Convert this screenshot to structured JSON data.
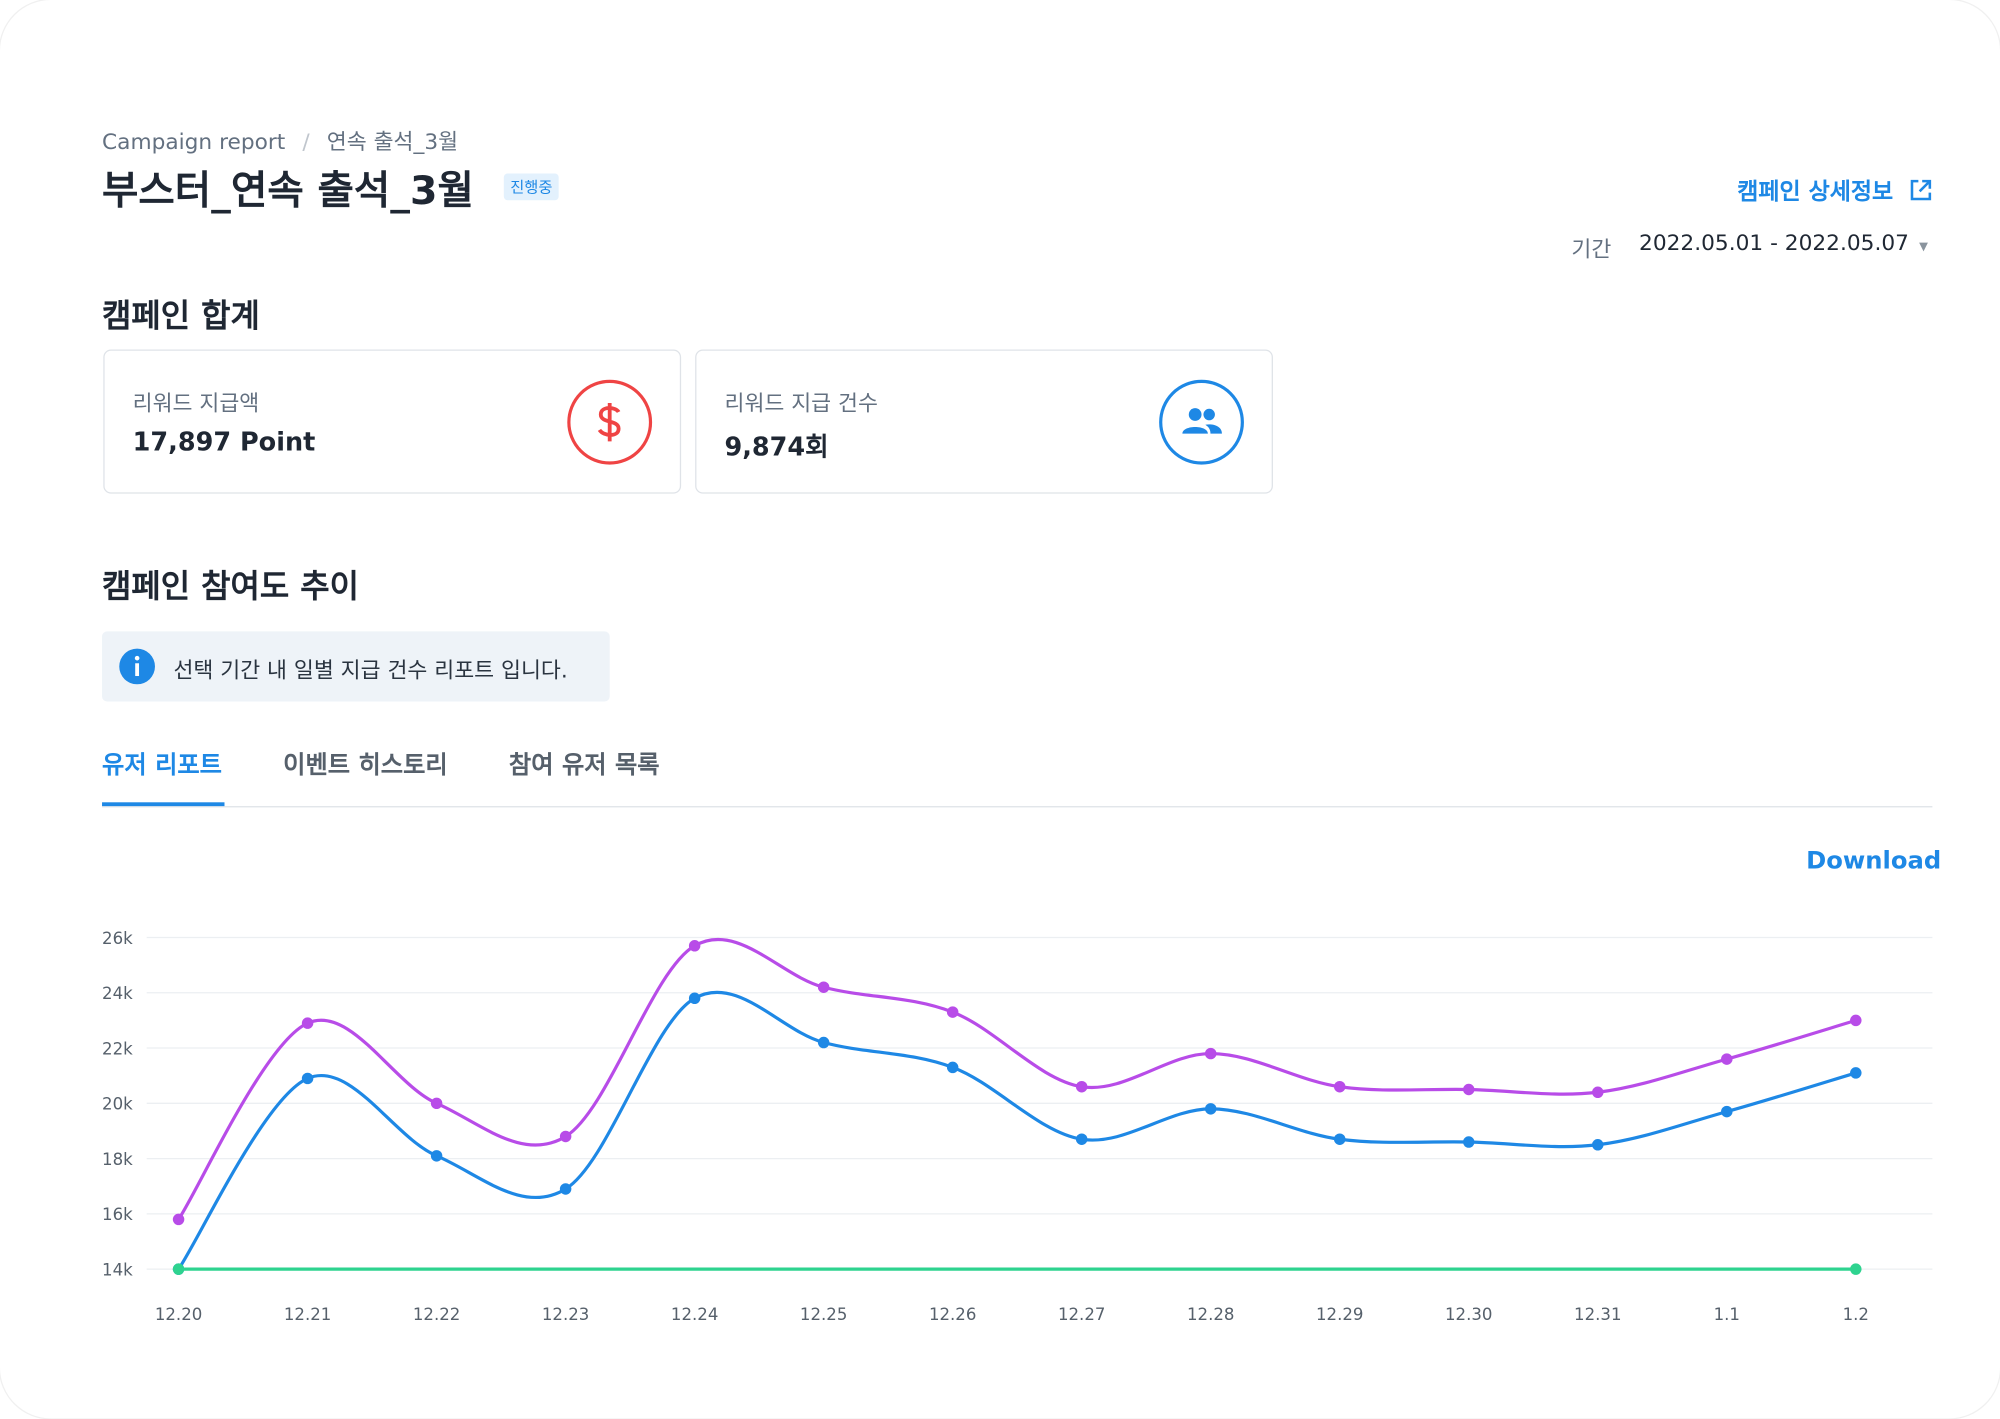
{
  "breadcrumb": [
    "Campaign report",
    "연속 출석_3월"
  ],
  "title": "부스터_연속 출석_3월",
  "status": "진행중",
  "detail_link": "캠페인 상세정보",
  "period": {
    "label": "기간",
    "value": "2022.05.01 - 2022.05.07"
  },
  "summary": {
    "title": "캠페인 합계",
    "cards": [
      {
        "label": "리워드 지급액",
        "value": "17,897 Point"
      },
      {
        "label": "리워드 지급 건수",
        "value": "9,874회"
      }
    ]
  },
  "trend": {
    "title": "캠페인 참여도 추이",
    "info": "선택 기간 내 일별 지급 건수 리포트 입니다.",
    "tabs": [
      "유저 리포트",
      "이벤트 히스토리",
      "참여 유저 목록"
    ],
    "download": "Download"
  },
  "chart_data": {
    "type": "line",
    "categories": [
      "12.20",
      "12.21",
      "12.22",
      "12.23",
      "12.24",
      "12.25",
      "12.26",
      "12.27",
      "12.28",
      "12.29",
      "12.30",
      "12.31",
      "1.1",
      "1.2"
    ],
    "series": [
      {
        "color": "#b84ce8",
        "values": [
          15800,
          22900,
          20000,
          18800,
          25700,
          24200,
          23300,
          20600,
          21800,
          20600,
          20500,
          20400,
          21600,
          23000
        ]
      },
      {
        "color": "#1e88e5",
        "values": [
          14000,
          20900,
          18100,
          16900,
          23800,
          22200,
          21300,
          18700,
          19800,
          18700,
          18600,
          18500,
          19700,
          21100
        ]
      },
      {
        "color": "#2ed38f",
        "values": [
          14000,
          14000,
          14000,
          14000,
          14000,
          14000,
          14000,
          14000,
          14000,
          14000,
          14000,
          14000,
          14000,
          14000
        ]
      }
    ],
    "ylim": [
      14000,
      26000
    ],
    "yticks": [
      {
        "value": 14000,
        "label": "14k"
      },
      {
        "value": 16000,
        "label": "16k"
      },
      {
        "value": 18000,
        "label": "18k"
      },
      {
        "value": 20000,
        "label": "20k"
      },
      {
        "value": 22000,
        "label": "22k"
      },
      {
        "value": 24000,
        "label": "24k"
      },
      {
        "value": 26000,
        "label": "26k"
      }
    ],
    "grid": true
  }
}
